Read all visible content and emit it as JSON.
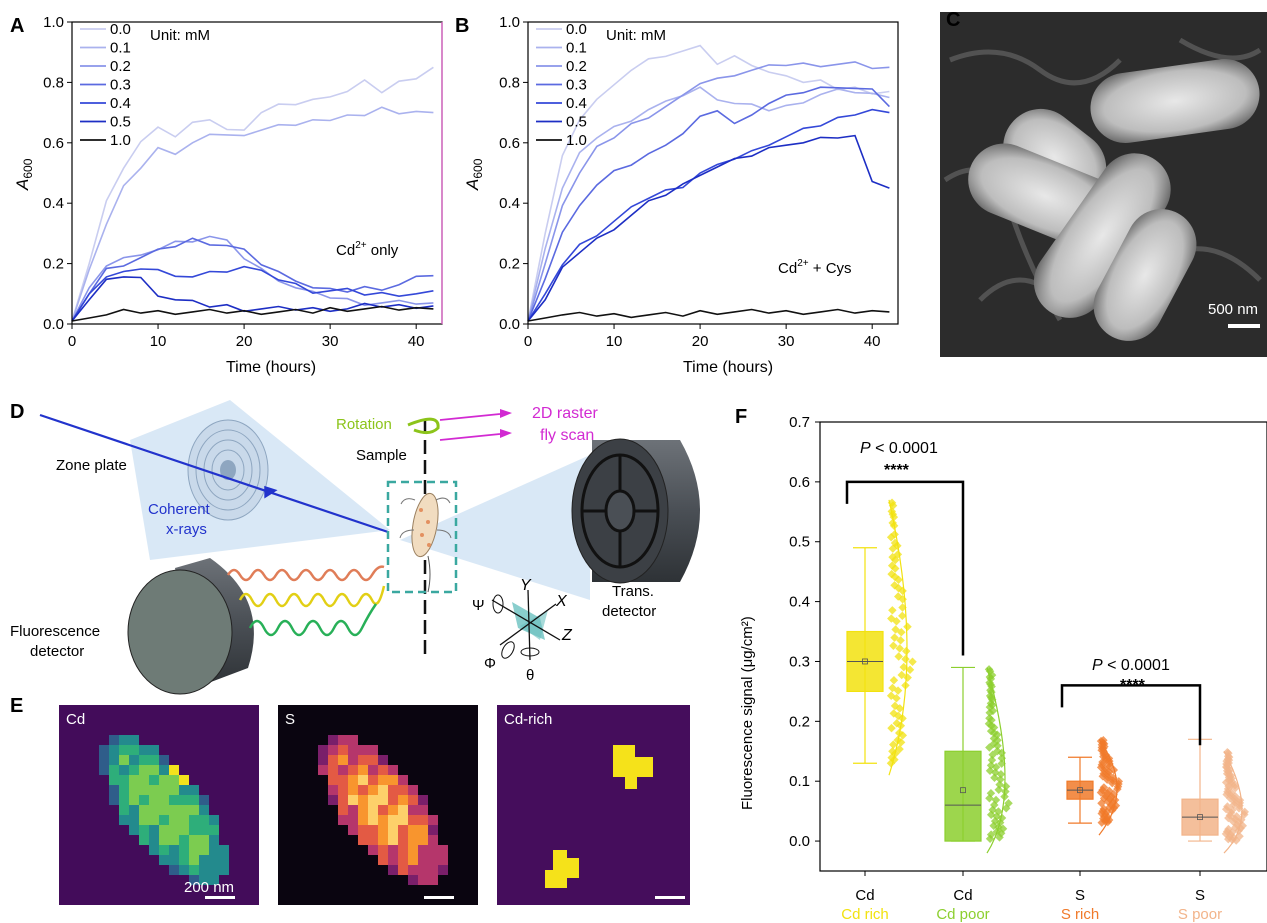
{
  "colors": {
    "conc": [
      "#c9cdf0",
      "#aab2ee",
      "#8a95ea",
      "#5b6ae0",
      "#3448d8",
      "#1d2ec4",
      "#111111"
    ],
    "cd_rich": "#f2e20f",
    "cd_poor": "#8ccf2e",
    "s_rich": "#f07a2a",
    "s_poor": "#f2b48a",
    "bracket": "#000000",
    "beam": "#2233cc",
    "dashed_box": "#3aa8a0",
    "raster": "#d22ad2",
    "rotation": "#8cc41a"
  },
  "panel_letters": {
    "a": "A",
    "b": "B",
    "c": "C",
    "d": "D",
    "e": "E",
    "f": "F"
  },
  "panel_a": {
    "ylabel_main": "A",
    "ylabel_sub": "600",
    "xlabel": "Time (hours)",
    "legend": [
      "0.0",
      "0.1",
      "0.2",
      "0.3",
      "0.4",
      "0.5",
      "1.0"
    ],
    "unit_note": "Unit: mM",
    "annotation_main": "Cd",
    "annotation_sup": "2+",
    "annotation_rest": " only"
  },
  "panel_b": {
    "ylabel_main": "A",
    "ylabel_sub": "600",
    "xlabel": "Time (hours)",
    "legend": [
      "0.0",
      "0.1",
      "0.2",
      "0.3",
      "0.4",
      "0.5",
      "1.0"
    ],
    "unit_note": "Unit: mM",
    "annotation_main": "Cd",
    "annotation_sup": "2+",
    "annotation_rest": " + Cys"
  },
  "panel_c": {
    "scale_label": "500 nm"
  },
  "panel_d": {
    "zone_plate": "Zone plate",
    "coherent_line1": "Coherent",
    "coherent_line2": "x-rays",
    "sample": "Sample",
    "rotation": "Rotation",
    "raster_line1": "2D raster",
    "raster_line2": "fly scan",
    "trans_line1": "Trans.",
    "trans_line2": "detector",
    "fluor_line1": "Fluorescence",
    "fluor_line2": "detector",
    "axis_y": "Y",
    "axis_x": "X",
    "axis_z": "Z",
    "axis_psi": "Ψ",
    "axis_phi": "Φ",
    "axis_theta": "θ"
  },
  "panel_e": {
    "map_cd": "Cd",
    "map_s": "S",
    "map_cdrich": "Cd-rich",
    "scale_label": "200 nm"
  },
  "panel_f": {
    "ylabel": "Fluorescence signal (μg/cm²)",
    "sig1_p": "P",
    "sig1_rest": " < 0.0001",
    "sig1_stars": "****",
    "sig2_p": "P",
    "sig2_rest": " < 0.0001",
    "sig2_stars": "****"
  },
  "chart_data": [
    {
      "type": "line",
      "panel": "A",
      "xlabel": "Time (hours)",
      "ylabel": "A600",
      "xlim": [
        0,
        43
      ],
      "ylim": [
        0,
        1.0
      ],
      "x_ticks": [
        0,
        10,
        20,
        30,
        40
      ],
      "y_ticks": [
        "0.0",
        "0.2",
        "0.4",
        "0.6",
        "0.8",
        "1.0"
      ],
      "legend_title": "Unit: mM",
      "x": [
        0,
        2,
        4,
        6,
        8,
        10,
        12,
        14,
        16,
        18,
        20,
        22,
        24,
        26,
        28,
        30,
        32,
        34,
        36,
        38,
        40,
        42
      ],
      "series": [
        {
          "name": "0.0",
          "values": [
            0.01,
            0.2,
            0.4,
            0.52,
            0.6,
            0.66,
            0.62,
            0.66,
            0.68,
            0.64,
            0.65,
            0.7,
            0.72,
            0.73,
            0.74,
            0.76,
            0.77,
            0.8,
            0.77,
            0.8,
            0.82,
            0.85
          ]
        },
        {
          "name": "0.1",
          "values": [
            0.01,
            0.18,
            0.33,
            0.45,
            0.52,
            0.58,
            0.57,
            0.6,
            0.62,
            0.63,
            0.62,
            0.65,
            0.66,
            0.65,
            0.68,
            0.67,
            0.7,
            0.69,
            0.71,
            0.7,
            0.7,
            0.7
          ]
        },
        {
          "name": "0.2",
          "values": [
            0.01,
            0.12,
            0.2,
            0.22,
            0.22,
            0.25,
            0.27,
            0.28,
            0.29,
            0.27,
            0.22,
            0.18,
            0.15,
            0.12,
            0.1,
            0.09,
            0.08,
            0.07,
            0.07,
            0.07,
            0.07,
            0.07
          ]
        },
        {
          "name": "0.3",
          "values": [
            0.01,
            0.1,
            0.18,
            0.2,
            0.22,
            0.24,
            0.26,
            0.28,
            0.27,
            0.26,
            0.24,
            0.2,
            0.17,
            0.15,
            0.12,
            0.11,
            0.11,
            0.12,
            0.12,
            0.13,
            0.15,
            0.16
          ]
        },
        {
          "name": "0.4",
          "values": [
            0.01,
            0.1,
            0.16,
            0.17,
            0.19,
            0.18,
            0.15,
            0.16,
            0.17,
            0.18,
            0.19,
            0.17,
            0.15,
            0.13,
            0.11,
            0.11,
            0.11,
            0.1,
            0.1,
            0.1,
            0.1,
            0.11
          ]
        },
        {
          "name": "0.5",
          "values": [
            0.01,
            0.08,
            0.14,
            0.16,
            0.15,
            0.1,
            0.08,
            0.07,
            0.06,
            0.06,
            0.05,
            0.05,
            0.05,
            0.05,
            0.05,
            0.05,
            0.05,
            0.06,
            0.06,
            0.06,
            0.06,
            0.06
          ]
        },
        {
          "name": "1.0",
          "values": [
            0.01,
            0.02,
            0.03,
            0.04,
            0.04,
            0.04,
            0.04,
            0.04,
            0.04,
            0.04,
            0.04,
            0.04,
            0.04,
            0.04,
            0.04,
            0.05,
            0.05,
            0.05,
            0.05,
            0.05,
            0.05,
            0.05
          ]
        }
      ]
    },
    {
      "type": "line",
      "panel": "B",
      "xlabel": "Time (hours)",
      "ylabel": "A600",
      "xlim": [
        0,
        43
      ],
      "ylim": [
        0,
        1.0
      ],
      "x_ticks": [
        0,
        10,
        20,
        30,
        40
      ],
      "y_ticks": [
        "0.0",
        "0.2",
        "0.4",
        "0.6",
        "0.8",
        "1.0"
      ],
      "legend_title": "Unit: mM",
      "x": [
        0,
        2,
        4,
        6,
        8,
        10,
        12,
        14,
        16,
        18,
        20,
        22,
        24,
        26,
        28,
        30,
        32,
        34,
        36,
        38,
        40,
        42
      ],
      "series": [
        {
          "name": "0.0",
          "values": [
            0.01,
            0.3,
            0.55,
            0.68,
            0.74,
            0.8,
            0.84,
            0.87,
            0.89,
            0.9,
            0.93,
            0.86,
            0.88,
            0.86,
            0.83,
            0.83,
            0.8,
            0.8,
            0.78,
            0.78,
            0.77,
            0.77
          ]
        },
        {
          "name": "0.1",
          "values": [
            0.01,
            0.25,
            0.45,
            0.56,
            0.62,
            0.65,
            0.68,
            0.71,
            0.73,
            0.76,
            0.78,
            0.75,
            0.73,
            0.72,
            0.71,
            0.72,
            0.74,
            0.76,
            0.77,
            0.77,
            0.76,
            0.75
          ]
        },
        {
          "name": "0.2",
          "values": [
            0.01,
            0.2,
            0.4,
            0.5,
            0.58,
            0.62,
            0.66,
            0.69,
            0.72,
            0.75,
            0.8,
            0.81,
            0.83,
            0.84,
            0.85,
            0.86,
            0.86,
            0.86,
            0.86,
            0.86,
            0.85,
            0.85
          ]
        },
        {
          "name": "0.3",
          "values": [
            0.01,
            0.15,
            0.3,
            0.4,
            0.46,
            0.5,
            0.53,
            0.56,
            0.6,
            0.63,
            0.68,
            0.71,
            0.66,
            0.7,
            0.73,
            0.75,
            0.77,
            0.78,
            0.79,
            0.78,
            0.77,
            0.72
          ]
        },
        {
          "name": "0.4",
          "values": [
            0.01,
            0.1,
            0.2,
            0.26,
            0.3,
            0.34,
            0.38,
            0.42,
            0.44,
            0.46,
            0.5,
            0.52,
            0.55,
            0.57,
            0.6,
            0.62,
            0.64,
            0.66,
            0.68,
            0.7,
            0.71,
            0.7
          ]
        },
        {
          "name": "0.5",
          "values": [
            0.01,
            0.08,
            0.18,
            0.24,
            0.28,
            0.32,
            0.36,
            0.4,
            0.43,
            0.46,
            0.5,
            0.52,
            0.54,
            0.56,
            0.58,
            0.6,
            0.6,
            0.61,
            0.62,
            0.62,
            0.48,
            0.45
          ]
        },
        {
          "name": "1.0",
          "values": [
            0.01,
            0.02,
            0.03,
            0.03,
            0.03,
            0.03,
            0.03,
            0.03,
            0.03,
            0.03,
            0.04,
            0.04,
            0.04,
            0.04,
            0.04,
            0.04,
            0.04,
            0.04,
            0.04,
            0.04,
            0.04,
            0.04
          ]
        }
      ]
    },
    {
      "type": "box",
      "panel": "F",
      "ylabel": "Fluorescence signal (μg/cm²)",
      "ylim": [
        -0.05,
        0.7
      ],
      "y_ticks": [
        "0.0",
        "0.1",
        "0.2",
        "0.3",
        "0.4",
        "0.5",
        "0.6",
        "0.7"
      ],
      "categories": [
        {
          "label": "Cd",
          "sublabel": "Cd rich",
          "color_key": "cd_rich",
          "q1": 0.25,
          "median": 0.3,
          "q3": 0.35,
          "whisker_low": 0.13,
          "whisker_high": 0.49,
          "mean": 0.3,
          "max_point": 0.57,
          "min_point": 0.13
        },
        {
          "label": "Cd",
          "sublabel": "Cd poor",
          "color_key": "cd_poor",
          "q1": 0.0,
          "median": 0.06,
          "q3": 0.15,
          "whisker_low": 0.0,
          "whisker_high": 0.29,
          "mean": 0.085,
          "max_point": 0.29,
          "min_point": 0.0
        },
        {
          "label": "S",
          "sublabel": "S rich",
          "color_key": "s_rich",
          "q1": 0.07,
          "median": 0.085,
          "q3": 0.1,
          "whisker_low": 0.03,
          "whisker_high": 0.14,
          "mean": 0.085,
          "max_point": 0.17,
          "min_point": 0.03
        },
        {
          "label": "S",
          "sublabel": "S poor",
          "color_key": "s_poor",
          "q1": 0.01,
          "median": 0.04,
          "q3": 0.07,
          "whisker_low": 0.0,
          "whisker_high": 0.17,
          "mean": 0.04,
          "max_point": 0.15,
          "min_point": 0.0
        }
      ],
      "comparisons": [
        {
          "between": [
            0,
            1
          ],
          "p_text": "P < 0.0001",
          "stars": "****",
          "y": 0.6
        },
        {
          "between": [
            2,
            3
          ],
          "p_text": "P < 0.0001",
          "stars": "****",
          "y": 0.26
        }
      ]
    }
  ]
}
